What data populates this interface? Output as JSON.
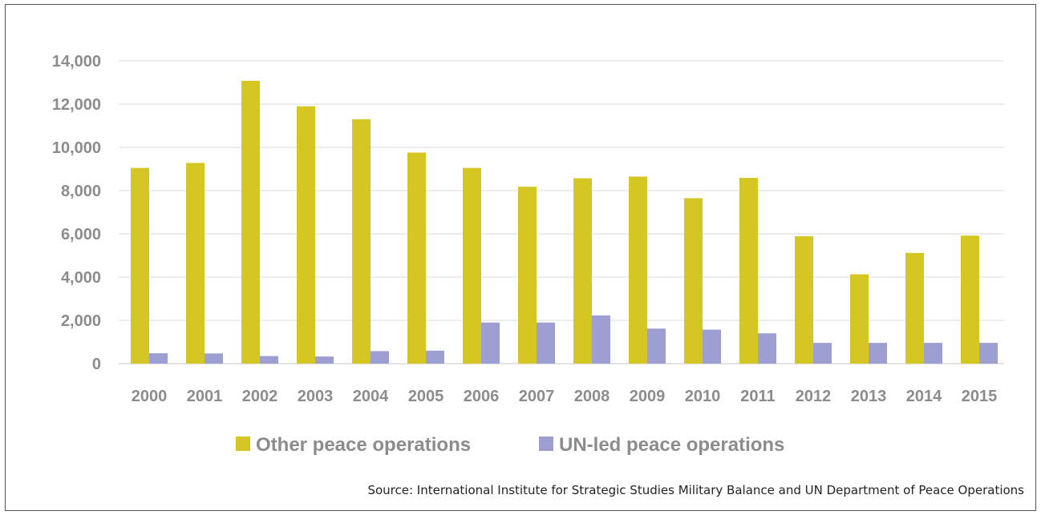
{
  "chart_data": {
    "type": "bar",
    "categories": [
      "2000",
      "2001",
      "2002",
      "2003",
      "2004",
      "2005",
      "2006",
      "2007",
      "2008",
      "2009",
      "2010",
      "2011",
      "2012",
      "2013",
      "2014",
      "2015"
    ],
    "series": [
      {
        "name": "Other peace operations",
        "color": "#d6c623",
        "values": [
          9050,
          9280,
          13080,
          11900,
          11300,
          9760,
          9050,
          8180,
          8570,
          8650,
          7650,
          8590,
          5890,
          4130,
          5120,
          5920
        ]
      },
      {
        "name": "UN-led peace operations",
        "color": "#9d9fd2",
        "values": [
          480,
          470,
          350,
          330,
          580,
          600,
          1900,
          1900,
          2230,
          1620,
          1570,
          1400,
          960,
          960,
          960,
          960
        ]
      }
    ],
    "ylim": [
      0,
      14000
    ],
    "yticks": [
      "0",
      "2,000",
      "4,000",
      "6,000",
      "8,000",
      "10,000",
      "12,000",
      "14,000"
    ],
    "ytick_values": [
      0,
      2000,
      4000,
      6000,
      8000,
      10000,
      12000,
      14000
    ],
    "grid": true,
    "legend_position": "bottom",
    "source": "Source: International Institute for Strategic Studies Military Balance and UN Department of Peace Operations"
  }
}
